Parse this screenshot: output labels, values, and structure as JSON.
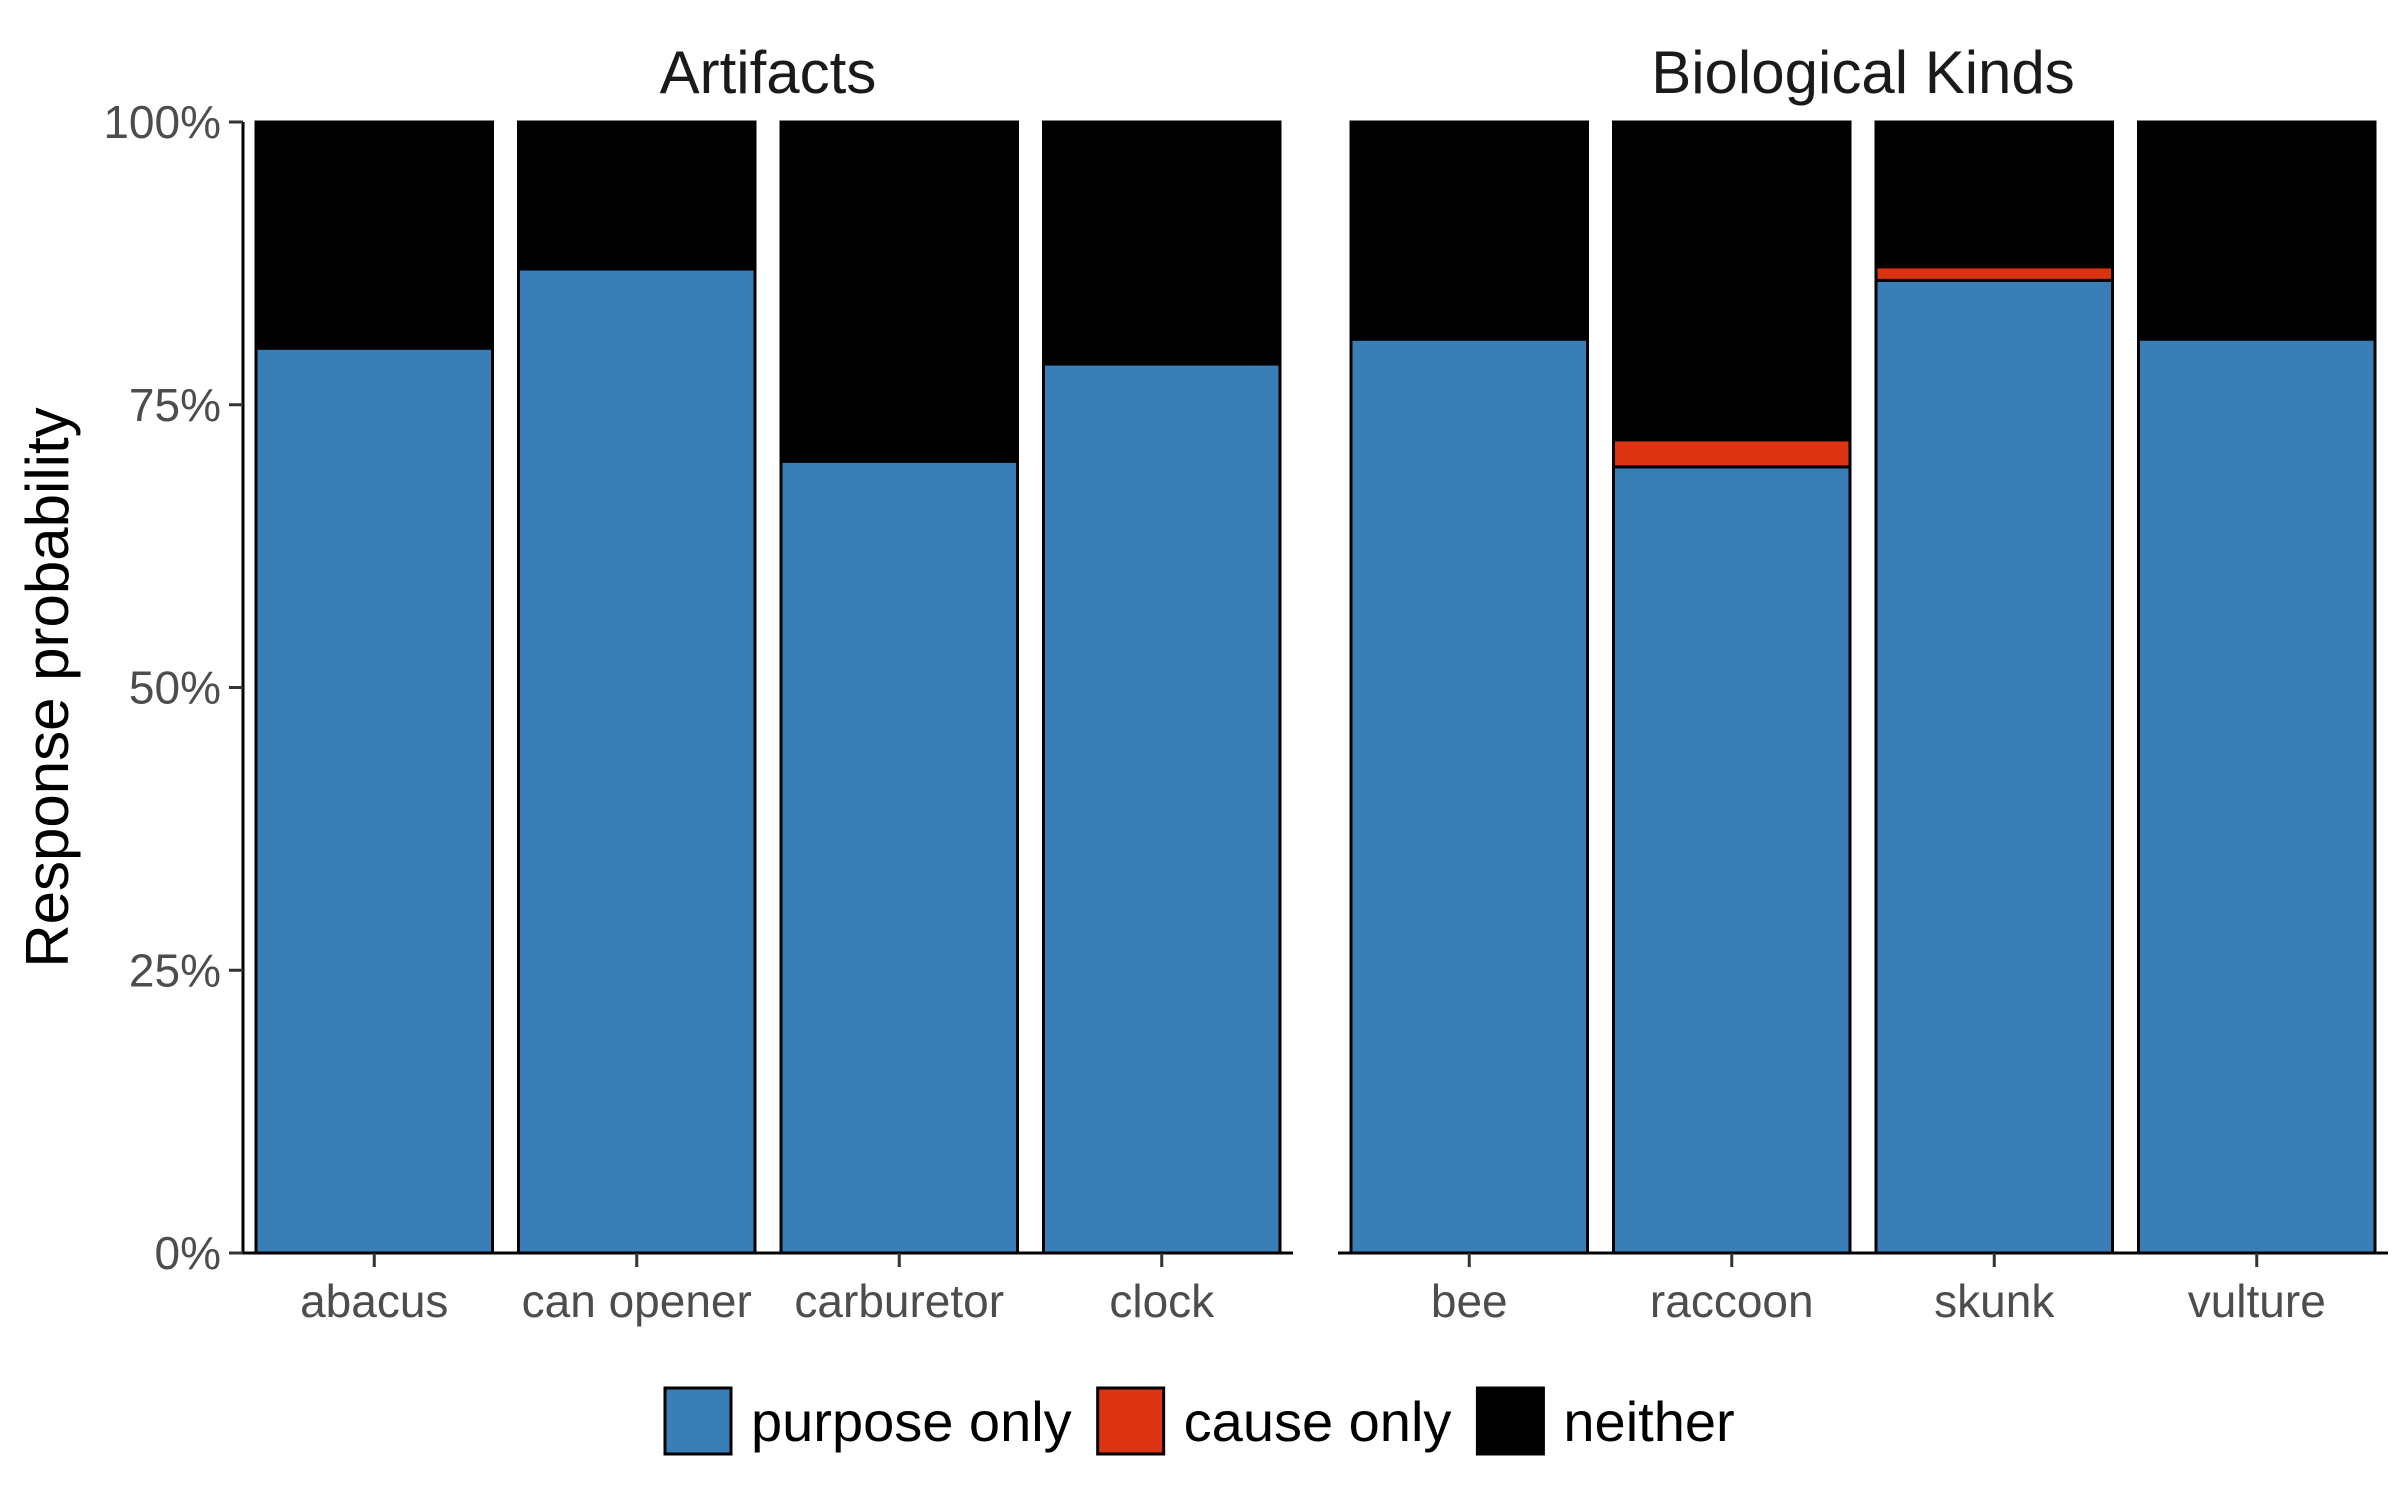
{
  "chart_data": {
    "type": "bar",
    "stacked": true,
    "ylabel": "Response probability",
    "ylim": [
      0,
      1
    ],
    "yticks": [
      "0%",
      "25%",
      "50%",
      "75%",
      "100%"
    ],
    "legend": {
      "position": "bottom",
      "entries": [
        {
          "key": "purpose",
          "label": "purpose only",
          "color": "#3A7EB8"
        },
        {
          "key": "cause",
          "label": "cause only",
          "color": "#DC3412"
        },
        {
          "key": "neither",
          "label": "neither",
          "color": "#000000"
        }
      ]
    },
    "panels": [
      {
        "title": "Artifacts",
        "categories": [
          "abacus",
          "can opener",
          "carburetor",
          "clock"
        ],
        "series": [
          {
            "name": "purpose only",
            "values": [
              0.8,
              0.87,
              0.7,
              0.786
            ]
          },
          {
            "name": "cause only",
            "values": [
              0.0,
              0.0,
              0.0,
              0.0
            ]
          },
          {
            "name": "neither",
            "values": [
              0.2,
              0.13,
              0.3,
              0.214
            ]
          }
        ]
      },
      {
        "title": "Biological Kinds",
        "categories": [
          "bee",
          "raccoon",
          "skunk",
          "vulture"
        ],
        "series": [
          {
            "name": "purpose only",
            "values": [
              0.808,
              0.695,
              0.86,
              0.808
            ]
          },
          {
            "name": "cause only",
            "values": [
              0.0,
              0.024,
              0.012,
              0.0
            ]
          },
          {
            "name": "neither",
            "values": [
              0.192,
              0.281,
              0.128,
              0.192
            ]
          }
        ]
      }
    ]
  }
}
